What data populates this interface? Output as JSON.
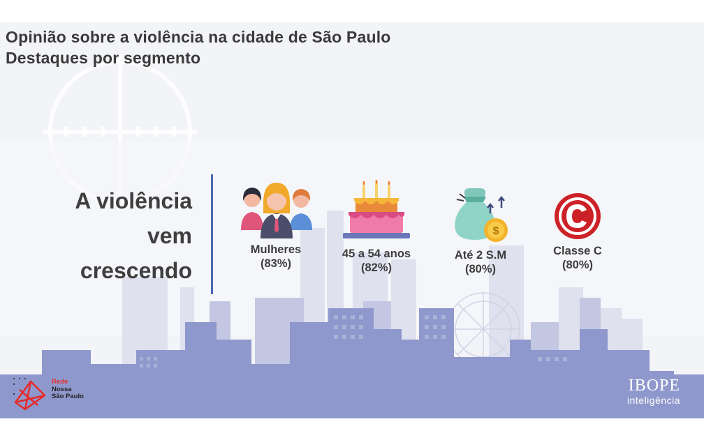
{
  "title": {
    "line1": "Opinião sobre a violência na cidade de São Paulo",
    "line2": "Destaques por segmento"
  },
  "headline": {
    "line1": "A violência",
    "line2": "vem",
    "line3": "crescendo"
  },
  "segments": [
    {
      "label": "Mulheres",
      "value": "(83%)",
      "icon": "women-group-icon"
    },
    {
      "label": "45 a 54 anos",
      "value": "(82%)",
      "icon": "birthday-cake-icon"
    },
    {
      "label": "Até 2 S.M",
      "value": "(80%)",
      "icon": "money-bag-icon"
    },
    {
      "label": "Classe C",
      "value": "(80%)",
      "icon": "letter-c-circle-icon"
    }
  ],
  "logos": {
    "rede_line1": "Rede",
    "rede_line2": "Nossa",
    "rede_line3": "São Paulo",
    "ibope_line1": "IBOPE",
    "ibope_line2": "inteligência"
  },
  "colors": {
    "accent_line": "#4a67b0",
    "skyline": "#8f98cc",
    "rede_red": "#e52b2b"
  }
}
